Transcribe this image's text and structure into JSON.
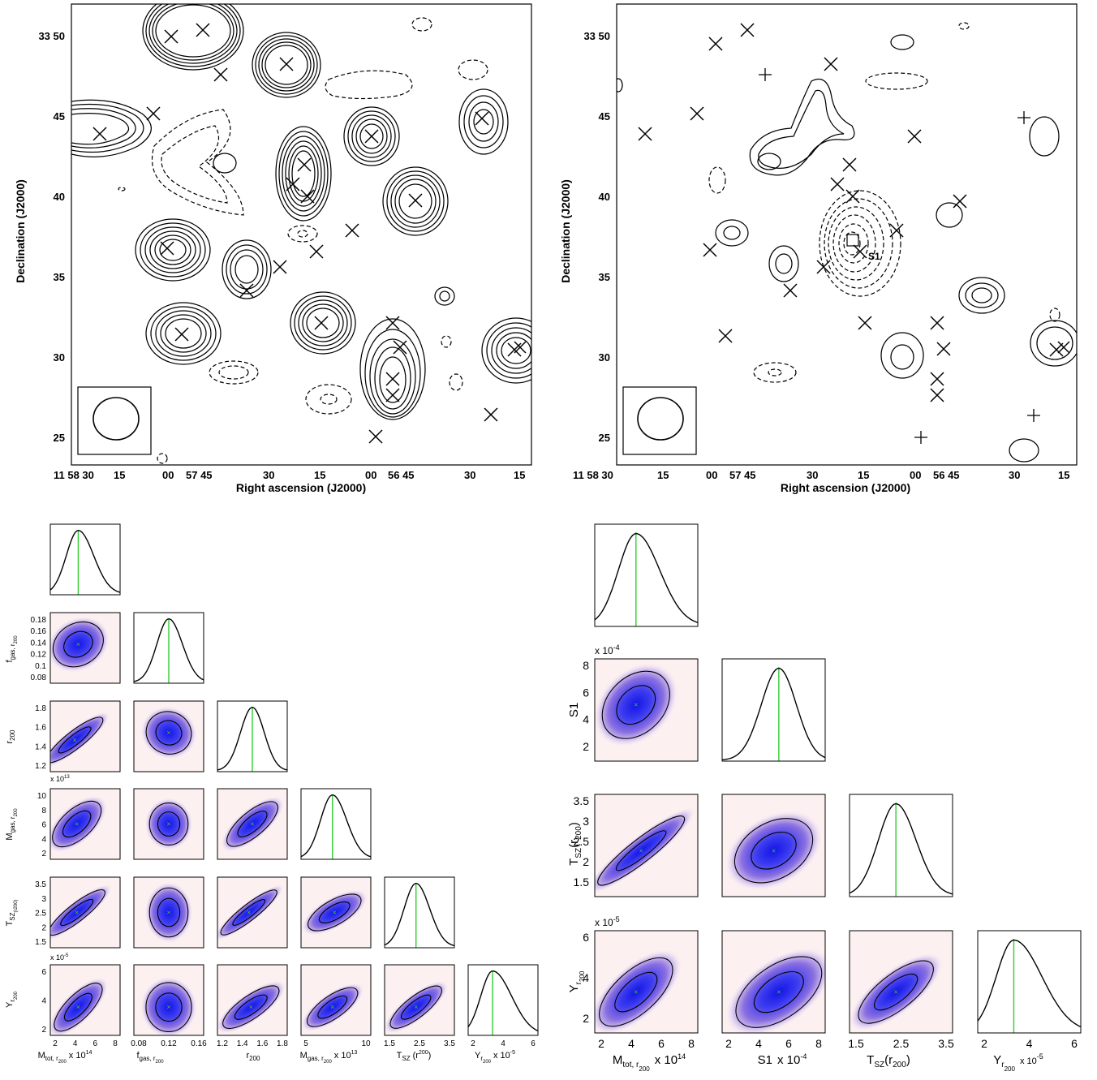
{
  "figure": {
    "panels": [
      {
        "id": "map-left",
        "xlabel": "Right ascension (J2000)",
        "ylabel": "Declination (J2000)",
        "ra_ticks": [
          "11 58 30",
          "15",
          "00",
          "57 45",
          "30",
          "15",
          "00",
          "56 45",
          "30",
          "15"
        ],
        "dec_ticks": [
          "33 50",
          "45",
          "40",
          "35",
          "30",
          "25"
        ]
      },
      {
        "id": "map-right",
        "xlabel": "Right ascension (J2000)",
        "ylabel": "Declination (J2000)",
        "ra_ticks": [
          "11 58 30",
          "15",
          "00",
          "57 45",
          "30",
          "15",
          "00",
          "56 45",
          "30",
          "15"
        ],
        "dec_ticks": [
          "33 50",
          "45",
          "40",
          "35",
          "30",
          "25"
        ],
        "source_label": "S1"
      }
    ],
    "triangle_left": {
      "params": [
        "M_tot,r200",
        "f_gas,r200",
        "r200",
        "M_gas,r200",
        "T_SZ(r200)",
        "Y_r200"
      ],
      "xlabels": [
        "M",
        "f",
        "r",
        "M",
        "T",
        "Y"
      ],
      "xlabel_subs": [
        "tot, r",
        "gas, r",
        "200",
        "gas, r",
        "SZ",
        "r"
      ],
      "xlabel_subsubs": [
        "200",
        "200",
        "",
        "200",
        "",
        "200"
      ],
      "xlabel_suffix": [
        "x 10",
        "",
        "",
        "x 10",
        "(r",
        "x 10"
      ],
      "xlabel_exps": [
        "14",
        "",
        "",
        "13",
        "200",
        "-5"
      ],
      "ylabels": [
        "f",
        "r",
        "M",
        "T",
        "Y"
      ],
      "ylabel_subs": [
        "gas, r",
        "200",
        "gas, r",
        "SZ",
        "r"
      ],
      "ylabel_sub2": [
        "200",
        "",
        "200",
        "(r200)",
        "200"
      ],
      "xticks": [
        [
          "2",
          "4",
          "6",
          "8"
        ],
        [
          "0.08",
          "0.12",
          "0.16"
        ],
        [
          "1.2",
          "1.4",
          "1.6",
          "1.8"
        ],
        [
          "5",
          "10"
        ],
        [
          "1.5",
          "2.5",
          "3.5"
        ],
        [
          "2",
          "4",
          "6"
        ]
      ],
      "yticks": [
        [
          "0.18",
          "0.16",
          "0.14",
          "0.12",
          "0.1",
          "0.08"
        ],
        [
          "1.8",
          "1.6",
          "1.4",
          "1.2"
        ],
        [
          "10",
          "8",
          "6",
          "4",
          "2"
        ],
        [
          "3.5",
          "3",
          "2.5",
          "2",
          "1.5"
        ],
        [
          "6",
          "4",
          "2"
        ]
      ],
      "multipliers": {
        "r_row_mgas": "x 10",
        "exp_mgas": "13",
        "r_row_y": "x 10",
        "exp_y": "-5"
      }
    },
    "triangle_right": {
      "params": [
        "M_tot,r200",
        "S1",
        "T_SZ(r200)",
        "Y_r200"
      ],
      "xticks": [
        [
          "2",
          "4",
          "6",
          "8"
        ],
        [
          "2",
          "4",
          "6",
          "8"
        ],
        [
          "1.5",
          "2.5",
          "3.5"
        ],
        [
          "2",
          "4",
          "6"
        ]
      ],
      "yticks": [
        [
          "8",
          "6",
          "4",
          "2"
        ],
        [
          "3.5",
          "3",
          "2.5",
          "2",
          "1.5"
        ],
        [
          "6",
          "4",
          "2"
        ]
      ],
      "s1_mult": "x 10",
      "s1_exp": "-4",
      "y_mult": "x 10",
      "y_exp": "-5",
      "ylabels": [
        "S1",
        "T",
        "Y"
      ],
      "xlabels": [
        "M",
        "S1",
        "T",
        "Y"
      ],
      "xsuffix": [
        "x 10",
        "x 10",
        "",
        "x 10"
      ],
      "xexp": [
        "14",
        "-4",
        "",
        "-5"
      ]
    },
    "colors": {
      "contour": "#000000",
      "marginal_line": "#32cd32",
      "bg_pink": "#fdf0f0",
      "blue_core": "#1010e0"
    }
  }
}
